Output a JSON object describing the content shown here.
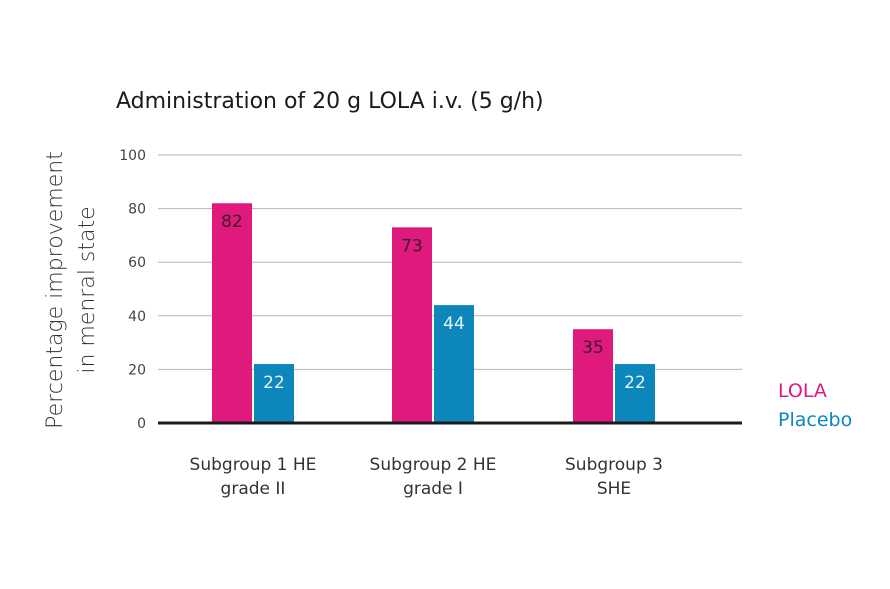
{
  "chart_data": {
    "type": "bar",
    "title": "Administration of 20 g LOLA i.v. (5 g/h)",
    "ylabel": [
      "Percentage improvement",
      "in menral state"
    ],
    "xlabel": "",
    "ylim": [
      0,
      100
    ],
    "yticks": [
      0,
      20,
      40,
      60,
      80,
      100
    ],
    "grid": true,
    "legend_position": "right",
    "categories": [
      [
        "Subgroup 1 HE",
        "grade II"
      ],
      [
        "Subgroup 2 HE",
        "grade I"
      ],
      [
        "Subgroup 3",
        "SHE"
      ]
    ],
    "series": [
      {
        "name": "LOLA",
        "color": "#e0197d",
        "label_color": "#3a1a2a",
        "values": [
          82,
          73,
          35
        ]
      },
      {
        "name": "Placebo",
        "color": "#0d86bb",
        "label_color": "#e6f3fa",
        "values": [
          22,
          44,
          22
        ]
      }
    ]
  }
}
